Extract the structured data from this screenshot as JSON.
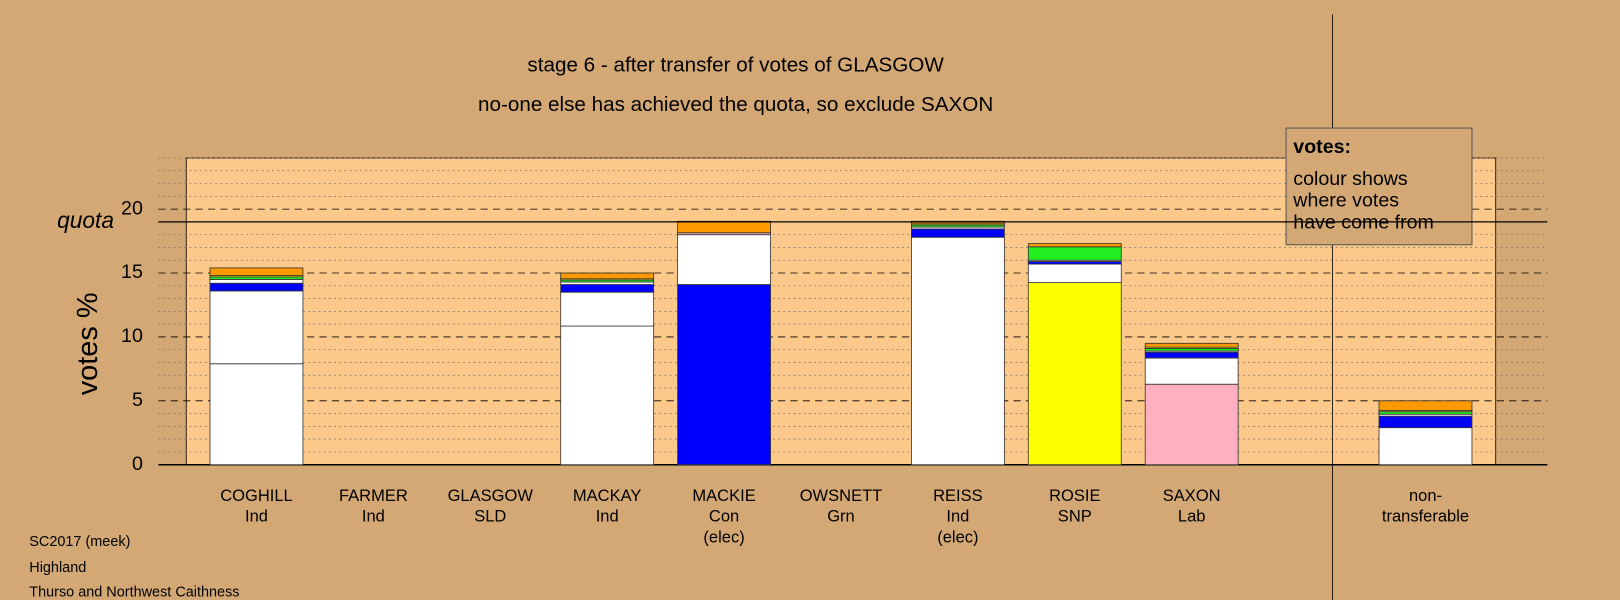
{
  "chart_data": {
    "type": "stacked_bar",
    "title": "stage 6 - after transfer of votes of GLASGOW",
    "subtitle": "no-one else has achieved the quota, so exclude SAXON",
    "ylabel": "votes %",
    "quota_label": "quota",
    "quota": 19.0,
    "legend": {
      "title": "votes:",
      "lines": [
        "colour shows",
        "where votes",
        "have come from"
      ]
    },
    "footer": [
      "SC2017 (meek)",
      "Highland",
      "Thurso and Northwest Caithness"
    ],
    "categories": [
      [
        "COGHILL",
        "Ind"
      ],
      [
        "FARMER",
        "Ind"
      ],
      [
        "GLASGOW",
        "SLD"
      ],
      [
        "MACKAY",
        "Ind"
      ],
      [
        "MACKIE",
        "Con",
        "(elec)"
      ],
      [
        "OWSNETT",
        "Grn"
      ],
      [
        "REISS",
        "Ind",
        "(elec)"
      ],
      [
        "ROSIE",
        "SNP"
      ],
      [
        "SAXON",
        "Lab"
      ],
      [
        "non-",
        "transferable"
      ]
    ],
    "series": [
      {
        "colors": [
          "#ffffff",
          null,
          null,
          "#ffffff",
          "#0000ff",
          null,
          "#ffffff",
          "#ffff00",
          "#ffb0c0",
          "#ffffff"
        ],
        "values": [
          7.9,
          null,
          null,
          10.85,
          14.1,
          null,
          17.8,
          14.25,
          6.3,
          2.9
        ]
      },
      {
        "color": "#ffffff",
        "values": [
          5.7,
          null,
          null,
          2.65,
          3.9,
          null,
          0,
          1.45,
          2.05,
          0
        ]
      },
      {
        "color": "#ffb0c0",
        "values": [
          0,
          null,
          null,
          0,
          0.15,
          null,
          0,
          0,
          0,
          0
        ]
      },
      {
        "color": "#0000ff",
        "values": [
          0.6,
          null,
          null,
          0.6,
          0,
          null,
          0.65,
          0.2,
          0.45,
          0.9
        ]
      },
      {
        "color": "#ffffff",
        "values": [
          0.3,
          null,
          null,
          0.2,
          0,
          null,
          0.15,
          0.1,
          0.1,
          0.15
        ]
      },
      {
        "color": "#22ee22",
        "values": [
          0.2,
          null,
          null,
          0.15,
          0,
          null,
          0.15,
          1.05,
          0.2,
          0.2
        ]
      },
      {
        "color": "#ffff00",
        "values": [
          0.1,
          null,
          null,
          0.1,
          0,
          null,
          0.1,
          0,
          0.1,
          0.1
        ]
      },
      {
        "color": "#ff9900",
        "values": [
          0.6,
          null,
          null,
          0.45,
          0.9,
          null,
          0.2,
          0.25,
          0.3,
          0.75
        ]
      }
    ],
    "ylim": [
      0,
      24
    ],
    "yticks": [
      0,
      5,
      10,
      15,
      20
    ],
    "yminorticks": [
      1,
      2,
      3,
      4,
      6,
      7,
      8,
      9,
      11,
      12,
      13,
      14,
      16,
      17,
      18,
      19,
      21,
      22,
      23,
      24
    ],
    "grid": true
  }
}
